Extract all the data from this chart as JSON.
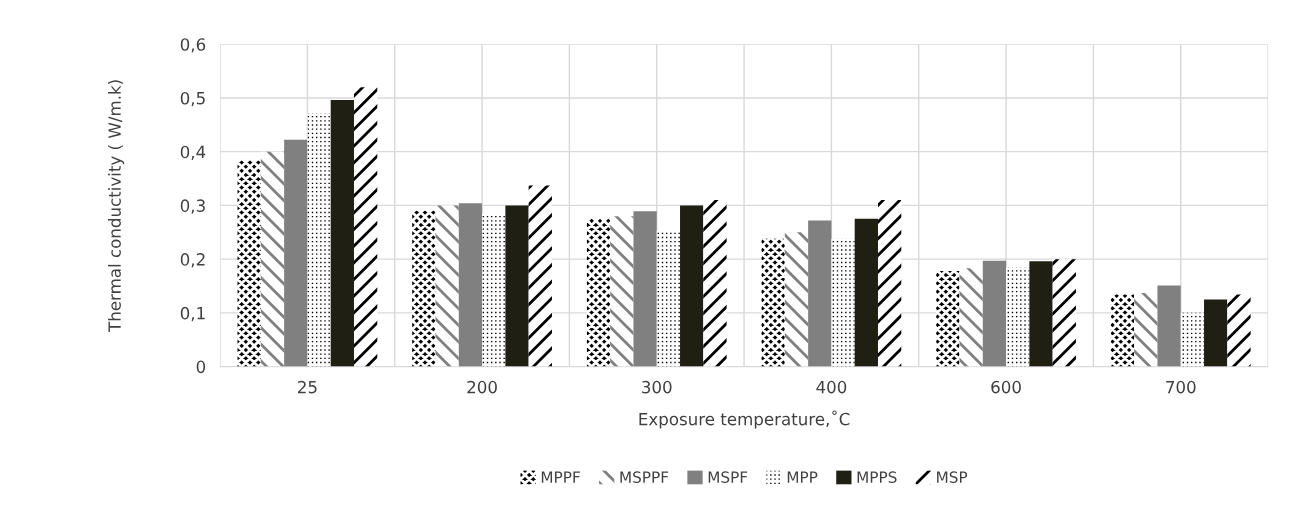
{
  "chart_data": {
    "type": "bar",
    "xlabel": "Exposure temperature,˚C",
    "ylabel": "Thermal conductivity ( W/m.k)",
    "categories": [
      "25",
      "200",
      "300",
      "400",
      "600",
      "700"
    ],
    "series": [
      {
        "name": "MPPF",
        "color": "#000000",
        "values": [
          0.384,
          0.29,
          0.275,
          0.238,
          0.178,
          0.134
        ]
      },
      {
        "name": "MSPPF",
        "color": "#808080",
        "values": [
          0.4,
          0.3,
          0.28,
          0.25,
          0.183,
          0.137
        ]
      },
      {
        "name": "MSPF",
        "color": "#808080",
        "values": [
          0.422,
          0.304,
          0.289,
          0.272,
          0.197,
          0.151
        ]
      },
      {
        "name": "MPP",
        "color": "#000000",
        "values": [
          0.472,
          0.284,
          0.253,
          0.238,
          0.185,
          0.1
        ]
      },
      {
        "name": "MPPS",
        "color": "#201f14",
        "values": [
          0.496,
          0.3,
          0.3,
          0.275,
          0.196,
          0.125
        ]
      },
      {
        "name": "MSP",
        "color": "#000000",
        "values": [
          0.52,
          0.337,
          0.31,
          0.31,
          0.2,
          0.134
        ]
      }
    ],
    "ylim": [
      0,
      0.6
    ],
    "yticks": [
      {
        "value": 0,
        "label": "0"
      },
      {
        "value": 0.1,
        "label": "0,1"
      },
      {
        "value": 0.2,
        "label": "0,2"
      },
      {
        "value": 0.3,
        "label": "0,3"
      },
      {
        "value": 0.4,
        "label": "0,4"
      },
      {
        "value": 0.5,
        "label": "0,5"
      },
      {
        "value": 0.6,
        "label": "0,6"
      }
    ],
    "grid": true,
    "legend": "bottom"
  }
}
